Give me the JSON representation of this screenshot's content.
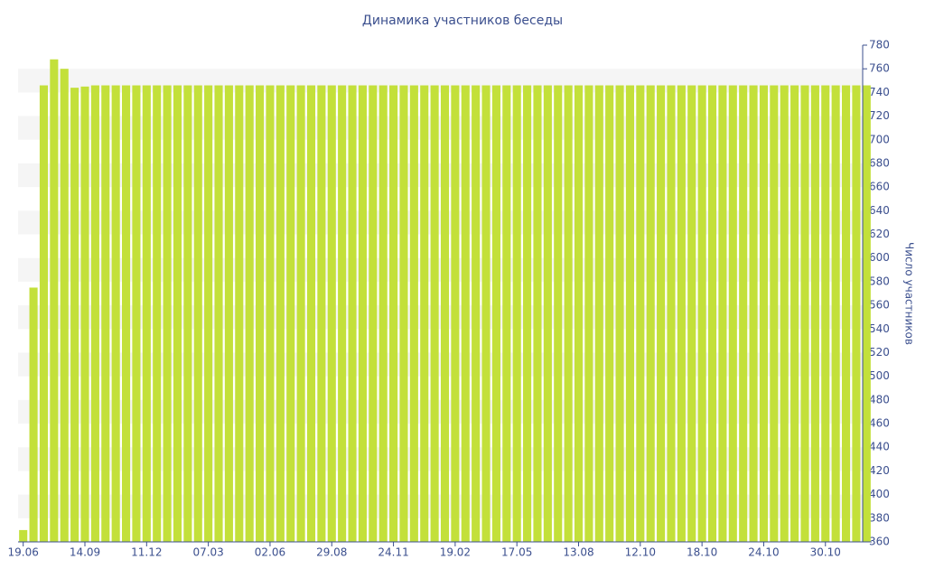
{
  "chart_data": {
    "type": "bar",
    "title": "Динамика участников беседы",
    "y_label": "Число участников",
    "categories": [
      "19.06",
      null,
      null,
      null,
      null,
      null,
      "14.09",
      null,
      null,
      null,
      null,
      null,
      "11.12",
      null,
      null,
      null,
      null,
      null,
      "07.03",
      null,
      null,
      null,
      null,
      null,
      "02.06",
      null,
      null,
      null,
      null,
      null,
      "29.08",
      null,
      null,
      null,
      null,
      null,
      "24.11",
      null,
      null,
      null,
      null,
      null,
      "19.02",
      null,
      null,
      null,
      null,
      null,
      "17.05",
      null,
      null,
      null,
      null,
      null,
      "13.08",
      null,
      null,
      null,
      null,
      null,
      "12.10",
      null,
      null,
      null,
      null,
      null,
      "18.10",
      null,
      null,
      null,
      null,
      null,
      "24.10",
      null,
      null,
      null,
      null,
      null,
      "30.10",
      null,
      null,
      null,
      null
    ],
    "values": [
      370,
      575,
      746,
      768,
      760,
      744,
      745,
      746,
      746,
      746,
      746,
      746,
      746,
      746,
      746,
      746,
      746,
      746,
      746,
      746,
      746,
      746,
      746,
      746,
      746,
      746,
      746,
      746,
      746,
      746,
      746,
      746,
      746,
      746,
      746,
      746,
      746,
      746,
      746,
      746,
      746,
      746,
      746,
      746,
      746,
      746,
      746,
      746,
      746,
      746,
      746,
      746,
      746,
      746,
      746,
      746,
      746,
      746,
      746,
      746,
      746,
      746,
      746,
      746,
      746,
      746,
      746,
      746,
      746,
      746,
      746,
      746,
      746,
      746,
      746,
      746,
      746,
      746,
      746,
      746,
      746,
      746,
      746
    ],
    "color": "#c3e03a",
    "ylim": [
      360,
      780
    ],
    "yticks": [
      360,
      380,
      400,
      420,
      440,
      460,
      480,
      500,
      520,
      540,
      560,
      580,
      600,
      620,
      640,
      660,
      680,
      700,
      720,
      740,
      760,
      780
    ],
    "grid": true,
    "y_axis_side": "right"
  }
}
